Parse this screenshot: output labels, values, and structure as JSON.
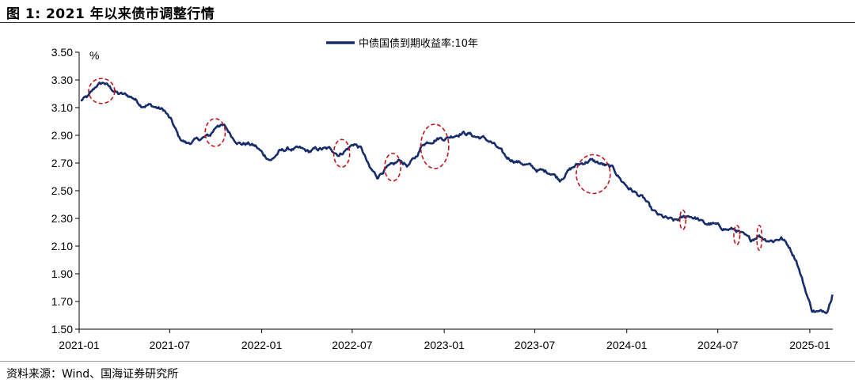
{
  "title": "图 1:  2021 年以来债市调整行情",
  "source": "资料来源：Wind、国海证券研究所",
  "colors": {
    "line": "#172d6b",
    "circle": "#c0161c",
    "axis": "#000000"
  },
  "chart_data": {
    "type": "line",
    "y_unit_label": "%",
    "ylim": [
      1.5,
      3.5
    ],
    "yticks": [
      "3.50",
      "3.30",
      "3.10",
      "2.90",
      "2.70",
      "2.50",
      "2.30",
      "2.10",
      "1.90",
      "1.70",
      "1.50"
    ],
    "xlim": [
      "2021-01",
      "2025-02"
    ],
    "xticks": [
      "2021-01",
      "2021-07",
      "2022-01",
      "2022-07",
      "2023-01",
      "2023-07",
      "2024-01",
      "2024-07",
      "2025-01"
    ],
    "legend_position": "top-center",
    "grid": false,
    "series": [
      {
        "name": "中债国债到期收益率:10年",
        "x": [
          "2021-01-04",
          "2021-01-20",
          "2021-02-05",
          "2021-02-20",
          "2021-03-05",
          "2021-03-20",
          "2021-04-05",
          "2021-04-20",
          "2021-05-05",
          "2021-05-20",
          "2021-06-05",
          "2021-06-20",
          "2021-07-05",
          "2021-07-20",
          "2021-08-05",
          "2021-08-20",
          "2021-09-05",
          "2021-09-20",
          "2021-10-05",
          "2021-10-20",
          "2021-11-05",
          "2021-11-20",
          "2021-12-05",
          "2021-12-20",
          "2022-01-05",
          "2022-01-20",
          "2022-02-05",
          "2022-02-20",
          "2022-03-05",
          "2022-03-20",
          "2022-04-05",
          "2022-04-20",
          "2022-05-05",
          "2022-05-20",
          "2022-06-05",
          "2022-06-20",
          "2022-07-05",
          "2022-07-20",
          "2022-08-05",
          "2022-08-20",
          "2022-09-05",
          "2022-09-20",
          "2022-10-05",
          "2022-10-20",
          "2022-11-05",
          "2022-11-20",
          "2022-12-05",
          "2022-12-20",
          "2023-01-05",
          "2023-01-20",
          "2023-02-05",
          "2023-02-20",
          "2023-03-05",
          "2023-03-20",
          "2023-04-05",
          "2023-04-20",
          "2023-05-05",
          "2023-05-20",
          "2023-06-05",
          "2023-06-20",
          "2023-07-05",
          "2023-07-20",
          "2023-08-05",
          "2023-08-20",
          "2023-09-05",
          "2023-09-20",
          "2023-10-05",
          "2023-10-20",
          "2023-11-05",
          "2023-11-20",
          "2023-12-05",
          "2023-12-20",
          "2024-01-05",
          "2024-01-20",
          "2024-02-05",
          "2024-02-20",
          "2024-03-05",
          "2024-03-20",
          "2024-04-05",
          "2024-04-20",
          "2024-05-05",
          "2024-05-20",
          "2024-06-05",
          "2024-06-20",
          "2024-07-05",
          "2024-07-20",
          "2024-08-05",
          "2024-08-20",
          "2024-09-05",
          "2024-09-20",
          "2024-10-05",
          "2024-10-20",
          "2024-11-05",
          "2024-11-20",
          "2024-12-05",
          "2024-12-20",
          "2025-01-05",
          "2025-01-20",
          "2025-02-05",
          "2025-02-15"
        ],
        "values": [
          3.15,
          3.18,
          3.26,
          3.28,
          3.24,
          3.2,
          3.19,
          3.17,
          3.12,
          3.12,
          3.1,
          3.08,
          3.0,
          2.88,
          2.84,
          2.86,
          2.88,
          2.9,
          2.98,
          2.96,
          2.88,
          2.84,
          2.84,
          2.82,
          2.76,
          2.72,
          2.78,
          2.8,
          2.8,
          2.8,
          2.78,
          2.8,
          2.8,
          2.8,
          2.76,
          2.8,
          2.84,
          2.8,
          2.66,
          2.6,
          2.66,
          2.68,
          2.72,
          2.68,
          2.74,
          2.84,
          2.86,
          2.88,
          2.88,
          2.9,
          2.92,
          2.91,
          2.89,
          2.88,
          2.85,
          2.8,
          2.74,
          2.72,
          2.7,
          2.68,
          2.65,
          2.64,
          2.63,
          2.58,
          2.64,
          2.68,
          2.7,
          2.72,
          2.7,
          2.68,
          2.66,
          2.58,
          2.52,
          2.48,
          2.44,
          2.36,
          2.32,
          2.3,
          2.28,
          2.3,
          2.32,
          2.3,
          2.26,
          2.26,
          2.24,
          2.22,
          2.22,
          2.18,
          2.14,
          2.18,
          2.15,
          2.14,
          2.16,
          2.1,
          2.0,
          1.82,
          1.64,
          1.62,
          1.64,
          1.75
        ]
      }
    ],
    "annotations": {
      "type": "dashed-ellipses",
      "regions": [
        {
          "x_center": "2021-02-15",
          "y_center": 3.22,
          "x_halfwidth_days": 26,
          "y_halfheight": 0.09
        },
        {
          "x_center": "2021-09-30",
          "y_center": 2.92,
          "x_halfwidth_days": 20,
          "y_halfheight": 0.1
        },
        {
          "x_center": "2022-06-10",
          "y_center": 2.77,
          "x_halfwidth_days": 16,
          "y_halfheight": 0.1
        },
        {
          "x_center": "2022-09-20",
          "y_center": 2.67,
          "x_halfwidth_days": 16,
          "y_halfheight": 0.1
        },
        {
          "x_center": "2022-12-13",
          "y_center": 2.82,
          "x_halfwidth_days": 28,
          "y_halfheight": 0.16
        },
        {
          "x_center": "2023-10-26",
          "y_center": 2.62,
          "x_halfwidth_days": 34,
          "y_halfheight": 0.14
        },
        {
          "x_center": "2024-04-22",
          "y_center": 2.29,
          "x_halfwidth_days": 6,
          "y_halfheight": 0.07
        },
        {
          "x_center": "2024-08-08",
          "y_center": 2.18,
          "x_halfwidth_days": 6,
          "y_halfheight": 0.07
        },
        {
          "x_center": "2024-09-22",
          "y_center": 2.16,
          "x_halfwidth_days": 5,
          "y_halfheight": 0.09
        }
      ]
    }
  }
}
